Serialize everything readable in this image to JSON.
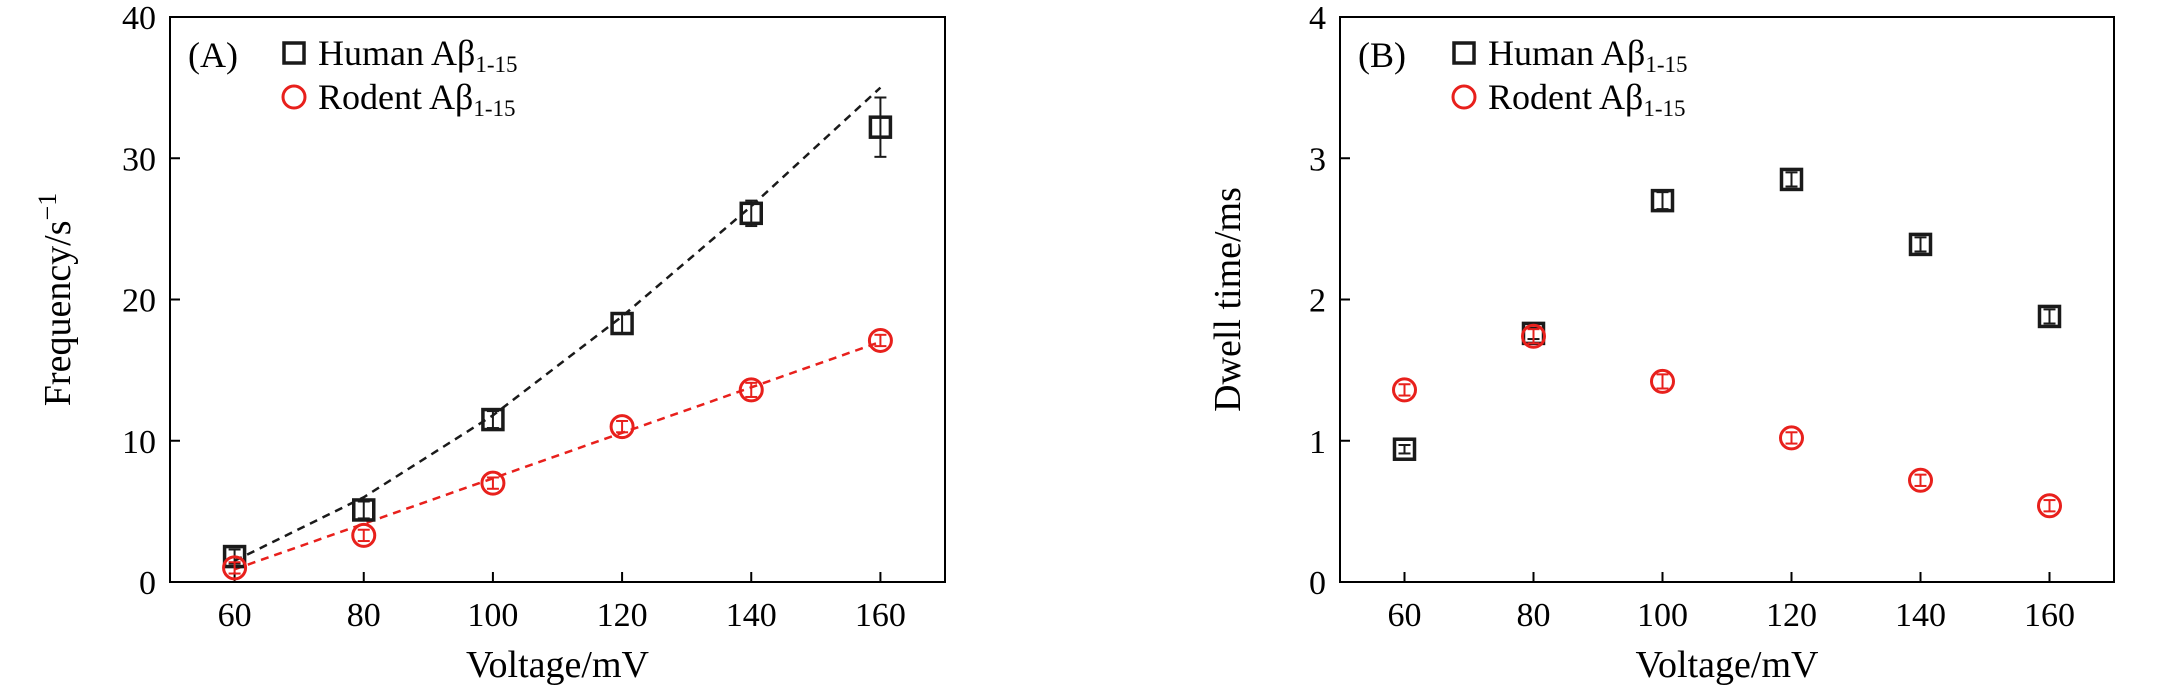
{
  "colors": {
    "human": "#1a1a1a",
    "rodent": "#e8201c",
    "axis": "#000000"
  },
  "chart_data": [
    {
      "type": "scatter",
      "panel_label": "(A)",
      "xlabel": "Voltage/mV",
      "ylabel": "Frequency/s",
      "ylabel_sup": "−1",
      "xlim": [
        50,
        170
      ],
      "ylim": [
        0,
        40
      ],
      "xticks": [
        60,
        80,
        100,
        120,
        140,
        160
      ],
      "yticks": [
        0,
        10,
        20,
        30,
        40
      ],
      "legend_position": "top-left",
      "series": [
        {
          "name": "Human Aβ",
          "name_sub": "1-15",
          "marker": "square",
          "color": "#1a1a1a",
          "x": [
            60,
            80,
            100,
            120,
            140,
            160
          ],
          "y": [
            1.8,
            5.1,
            11.5,
            18.3,
            26.1,
            32.2
          ],
          "err": [
            0.5,
            0.6,
            0.6,
            0.7,
            0.9,
            2.1
          ],
          "fit": {
            "x": [
              60,
              80,
              100,
              120,
              140,
              160
            ],
            "y": [
              1.5,
              6.0,
              11.8,
              18.8,
              26.6,
              35.0
            ]
          }
        },
        {
          "name": "Rodent Aβ",
          "name_sub": "1-15",
          "marker": "circle",
          "color": "#e8201c",
          "x": [
            60,
            80,
            100,
            120,
            140,
            160
          ],
          "y": [
            1.0,
            3.3,
            7.0,
            11.0,
            13.6,
            17.1
          ],
          "err": [
            0.4,
            0.4,
            0.4,
            0.4,
            0.5,
            0.4
          ],
          "fit": {
            "x": [
              60,
              160
            ],
            "y": [
              0.9,
              17.0
            ]
          }
        }
      ]
    },
    {
      "type": "scatter",
      "panel_label": "(B)",
      "xlabel": "Voltage/mV",
      "ylabel": "Dwell time/ms",
      "ylabel_sup": "",
      "xlim": [
        50,
        170
      ],
      "ylim": [
        0,
        4
      ],
      "xticks": [
        60,
        80,
        100,
        120,
        140,
        160
      ],
      "yticks": [
        0,
        1,
        2,
        3,
        4
      ],
      "legend_position": "top-left",
      "series": [
        {
          "name": "Human Aβ",
          "name_sub": "1-15",
          "marker": "square",
          "color": "#1a1a1a",
          "x": [
            60,
            80,
            100,
            120,
            140,
            160
          ],
          "y": [
            0.94,
            1.76,
            2.7,
            2.85,
            2.39,
            1.88
          ],
          "err": [
            0.03,
            0.04,
            0.06,
            0.05,
            0.05,
            0.05
          ]
        },
        {
          "name": "Rodent Aβ",
          "name_sub": "1-15",
          "marker": "circle",
          "color": "#e8201c",
          "x": [
            60,
            80,
            100,
            120,
            140,
            160
          ],
          "y": [
            1.36,
            1.74,
            1.42,
            1.02,
            0.72,
            0.54
          ],
          "err": [
            0.04,
            0.05,
            0.05,
            0.04,
            0.04,
            0.04
          ]
        }
      ]
    }
  ]
}
